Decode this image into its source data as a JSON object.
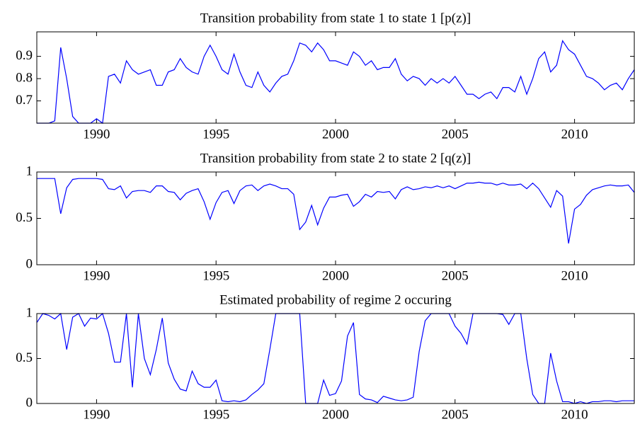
{
  "chart_data": [
    {
      "type": "line",
      "title": "Transition probability from state 1 to state 1 [p(z)]",
      "x": [
        1987.5,
        1987.75,
        1988,
        1988.25,
        1988.5,
        1988.75,
        1989,
        1989.25,
        1989.5,
        1989.75,
        1990,
        1990.25,
        1990.5,
        1990.75,
        1991,
        1991.25,
        1991.5,
        1991.75,
        1992,
        1992.25,
        1992.5,
        1992.75,
        1993,
        1993.25,
        1993.5,
        1993.75,
        1994,
        1994.25,
        1994.5,
        1994.75,
        1995,
        1995.25,
        1995.5,
        1995.75,
        1996,
        1996.25,
        1996.5,
        1996.75,
        1997,
        1997.25,
        1997.5,
        1997.75,
        1998,
        1998.25,
        1998.5,
        1998.75,
        1999,
        1999.25,
        1999.5,
        1999.75,
        2000,
        2000.25,
        2000.5,
        2000.75,
        2001,
        2001.25,
        2001.5,
        2001.75,
        2002,
        2002.25,
        2002.5,
        2002.75,
        2003,
        2003.25,
        2003.5,
        2003.75,
        2004,
        2004.25,
        2004.5,
        2004.75,
        2005,
        2005.25,
        2005.5,
        2005.75,
        2006,
        2006.25,
        2006.5,
        2006.75,
        2007,
        2007.25,
        2007.5,
        2007.75,
        2008,
        2008.25,
        2008.5,
        2008.75,
        2009,
        2009.25,
        2009.5,
        2009.75,
        2010,
        2010.25,
        2010.5,
        2010.75,
        2011,
        2011.25,
        2011.5,
        2011.75,
        2012,
        2012.25,
        2012.5
      ],
      "series": [
        {
          "color": "#0000ff",
          "values": [
            0.6,
            0.6,
            0.6,
            0.61,
            0.94,
            0.8,
            0.63,
            0.6,
            0.6,
            0.6,
            0.62,
            0.6,
            0.81,
            0.82,
            0.78,
            0.88,
            0.84,
            0.82,
            0.83,
            0.84,
            0.77,
            0.77,
            0.83,
            0.84,
            0.89,
            0.85,
            0.83,
            0.82,
            0.9,
            0.95,
            0.9,
            0.84,
            0.82,
            0.91,
            0.83,
            0.77,
            0.76,
            0.83,
            0.77,
            0.74,
            0.78,
            0.81,
            0.82,
            0.88,
            0.96,
            0.95,
            0.92,
            0.96,
            0.93,
            0.88,
            0.88,
            0.87,
            0.86,
            0.92,
            0.9,
            0.86,
            0.88,
            0.84,
            0.85,
            0.85,
            0.89,
            0.82,
            0.79,
            0.81,
            0.8,
            0.77,
            0.8,
            0.78,
            0.8,
            0.78,
            0.81,
            0.77,
            0.73,
            0.73,
            0.71,
            0.73,
            0.74,
            0.71,
            0.76,
            0.76,
            0.74,
            0.81,
            0.73,
            0.8,
            0.89,
            0.92,
            0.83,
            0.86,
            0.97,
            0.93,
            0.91,
            0.86,
            0.81,
            0.8,
            0.78,
            0.75,
            0.77,
            0.78,
            0.75,
            0.8,
            0.84
          ]
        }
      ],
      "xlim": [
        1987.5,
        2012.5
      ],
      "xticks": [
        1990,
        1995,
        2000,
        2005,
        2010
      ],
      "ylim": [
        0.6,
        1.01
      ],
      "yticks": [
        0.7,
        0.8,
        0.9
      ]
    },
    {
      "type": "line",
      "title": "Transition probability from state 2 to state 2 [q(z)]",
      "x": [
        1987.5,
        1987.75,
        1988,
        1988.25,
        1988.5,
        1988.75,
        1989,
        1989.25,
        1989.5,
        1989.75,
        1990,
        1990.25,
        1990.5,
        1990.75,
        1991,
        1991.25,
        1991.5,
        1991.75,
        1992,
        1992.25,
        1992.5,
        1992.75,
        1993,
        1993.25,
        1993.5,
        1993.75,
        1994,
        1994.25,
        1994.5,
        1994.75,
        1995,
        1995.25,
        1995.5,
        1995.75,
        1996,
        1996.25,
        1996.5,
        1996.75,
        1997,
        1997.25,
        1997.5,
        1997.75,
        1998,
        1998.25,
        1998.5,
        1998.75,
        1999,
        1999.25,
        1999.5,
        1999.75,
        2000,
        2000.25,
        2000.5,
        2000.75,
        2001,
        2001.25,
        2001.5,
        2001.75,
        2002,
        2002.25,
        2002.5,
        2002.75,
        2003,
        2003.25,
        2003.5,
        2003.75,
        2004,
        2004.25,
        2004.5,
        2004.75,
        2005,
        2005.25,
        2005.5,
        2005.75,
        2006,
        2006.25,
        2006.5,
        2006.75,
        2007,
        2007.25,
        2007.5,
        2007.75,
        2008,
        2008.25,
        2008.5,
        2008.75,
        2009,
        2009.25,
        2009.5,
        2009.75,
        2010,
        2010.25,
        2010.5,
        2010.75,
        2011,
        2011.25,
        2011.5,
        2011.75,
        2012,
        2012.25,
        2012.5
      ],
      "series": [
        {
          "color": "#0000ff",
          "values": [
            0.93,
            0.93,
            0.93,
            0.93,
            0.55,
            0.83,
            0.92,
            0.93,
            0.93,
            0.93,
            0.93,
            0.92,
            0.82,
            0.81,
            0.85,
            0.72,
            0.79,
            0.8,
            0.8,
            0.78,
            0.85,
            0.85,
            0.79,
            0.78,
            0.7,
            0.77,
            0.8,
            0.82,
            0.68,
            0.49,
            0.67,
            0.78,
            0.8,
            0.66,
            0.8,
            0.85,
            0.86,
            0.8,
            0.85,
            0.87,
            0.85,
            0.82,
            0.82,
            0.76,
            0.38,
            0.46,
            0.64,
            0.43,
            0.61,
            0.73,
            0.73,
            0.75,
            0.76,
            0.63,
            0.68,
            0.76,
            0.73,
            0.79,
            0.78,
            0.79,
            0.71,
            0.81,
            0.84,
            0.81,
            0.82,
            0.84,
            0.83,
            0.85,
            0.83,
            0.85,
            0.82,
            0.85,
            0.88,
            0.88,
            0.89,
            0.88,
            0.88,
            0.86,
            0.88,
            0.86,
            0.86,
            0.87,
            0.82,
            0.88,
            0.82,
            0.72,
            0.62,
            0.8,
            0.74,
            0.23,
            0.6,
            0.65,
            0.75,
            0.81,
            0.83,
            0.85,
            0.86,
            0.85,
            0.85,
            0.86,
            0.78
          ]
        }
      ],
      "xlim": [
        1987.5,
        2012.5
      ],
      "xticks": [
        1990,
        1995,
        2000,
        2005,
        2010
      ],
      "ylim": [
        0,
        1
      ],
      "yticks": [
        0,
        0.5,
        1
      ]
    },
    {
      "type": "line",
      "title": "Estimated probability of regime 2 occuring",
      "x": [
        1987.5,
        1987.75,
        1988,
        1988.25,
        1988.5,
        1988.75,
        1989,
        1989.25,
        1989.5,
        1989.75,
        1990,
        1990.25,
        1990.5,
        1990.75,
        1991,
        1991.25,
        1991.5,
        1991.75,
        1992,
        1992.25,
        1992.5,
        1992.75,
        1993,
        1993.25,
        1993.5,
        1993.75,
        1994,
        1994.25,
        1994.5,
        1994.75,
        1995,
        1995.25,
        1995.5,
        1995.75,
        1996,
        1996.25,
        1996.5,
        1996.75,
        1997,
        1997.25,
        1997.5,
        1997.75,
        1998,
        1998.25,
        1998.5,
        1998.75,
        1999,
        1999.25,
        1999.5,
        1999.75,
        2000,
        2000.25,
        2000.5,
        2000.75,
        2001,
        2001.25,
        2001.5,
        2001.75,
        2002,
        2002.25,
        2002.5,
        2002.75,
        2003,
        2003.25,
        2003.5,
        2003.75,
        2004,
        2004.25,
        2004.5,
        2004.75,
        2005,
        2005.25,
        2005.5,
        2005.75,
        2006,
        2006.25,
        2006.5,
        2006.75,
        2007,
        2007.25,
        2007.5,
        2007.75,
        2008,
        2008.25,
        2008.5,
        2008.75,
        2009,
        2009.25,
        2009.5,
        2009.75,
        2010,
        2010.25,
        2010.5,
        2010.75,
        2011,
        2011.25,
        2011.5,
        2011.75,
        2012,
        2012.25,
        2012.5
      ],
      "series": [
        {
          "color": "#0000ff",
          "values": [
            0.9,
            1.0,
            0.98,
            0.94,
            1.0,
            0.6,
            0.96,
            1.0,
            0.86,
            0.95,
            0.94,
            1.0,
            0.78,
            0.46,
            0.46,
            1.0,
            0.18,
            1.0,
            0.5,
            0.32,
            0.6,
            0.95,
            0.45,
            0.27,
            0.16,
            0.14,
            0.36,
            0.22,
            0.18,
            0.18,
            0.26,
            0.03,
            0.02,
            0.03,
            0.02,
            0.04,
            0.1,
            0.15,
            0.22,
            0.6,
            1.0,
            1.0,
            1.0,
            1.0,
            1.0,
            0.0,
            0.0,
            0.0,
            0.26,
            0.09,
            0.11,
            0.25,
            0.75,
            0.9,
            0.1,
            0.05,
            0.04,
            0.01,
            0.08,
            0.06,
            0.04,
            0.03,
            0.04,
            0.07,
            0.58,
            0.92,
            1.0,
            1.0,
            1.0,
            1.0,
            0.86,
            0.78,
            0.66,
            1.0,
            1.0,
            1.0,
            1.0,
            1.0,
            0.99,
            0.88,
            1.0,
            1.0,
            0.5,
            0.1,
            0.0,
            0.0,
            0.56,
            0.25,
            0.02,
            0.02,
            0.0,
            0.02,
            0.0,
            0.02,
            0.02,
            0.03,
            0.03,
            0.02,
            0.03,
            0.03,
            0.03
          ]
        }
      ],
      "xlim": [
        1987.5,
        2012.5
      ],
      "xticks": [
        1990,
        1995,
        2000,
        2005,
        2010
      ],
      "ylim": [
        0,
        1
      ],
      "yticks": [
        0,
        0.5,
        1
      ]
    }
  ]
}
